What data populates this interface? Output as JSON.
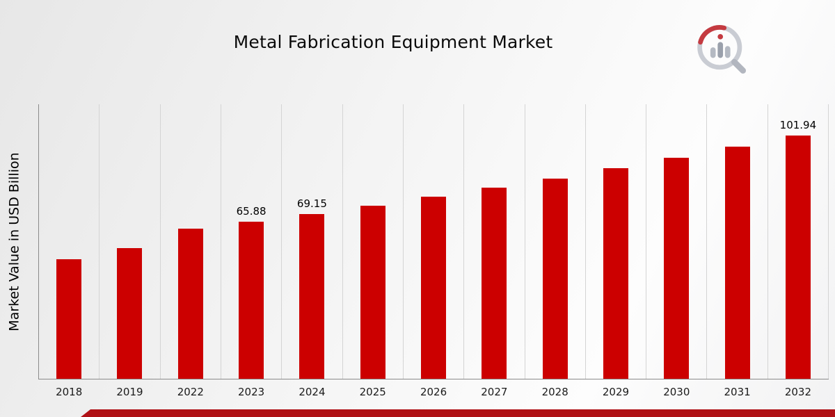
{
  "branding": {
    "logo_name": "market-research-future-logo",
    "accent_red": "#CC0000",
    "footer_bar_color": "#B01116"
  },
  "chart_data": {
    "type": "bar",
    "title": "Metal Fabrication Equipment Market",
    "xlabel": "",
    "ylabel": "Market Value in USD Billion",
    "categories": [
      "2018",
      "2019",
      "2022",
      "2023",
      "2024",
      "2025",
      "2026",
      "2027",
      "2028",
      "2029",
      "2030",
      "2031",
      "2032"
    ],
    "values": [
      50.0,
      54.6,
      62.8,
      65.88,
      69.15,
      72.6,
      76.2,
      80.0,
      83.9,
      88.1,
      92.5,
      97.1,
      101.94
    ],
    "data_labels": [
      null,
      null,
      null,
      "65.88",
      "69.15",
      null,
      null,
      null,
      null,
      null,
      null,
      null,
      "101.94"
    ],
    "ylim": [
      0,
      115
    ],
    "bar_color": "#CC0000",
    "grid": "vertical-only",
    "legend": "none",
    "y_tick_labels": "none"
  }
}
